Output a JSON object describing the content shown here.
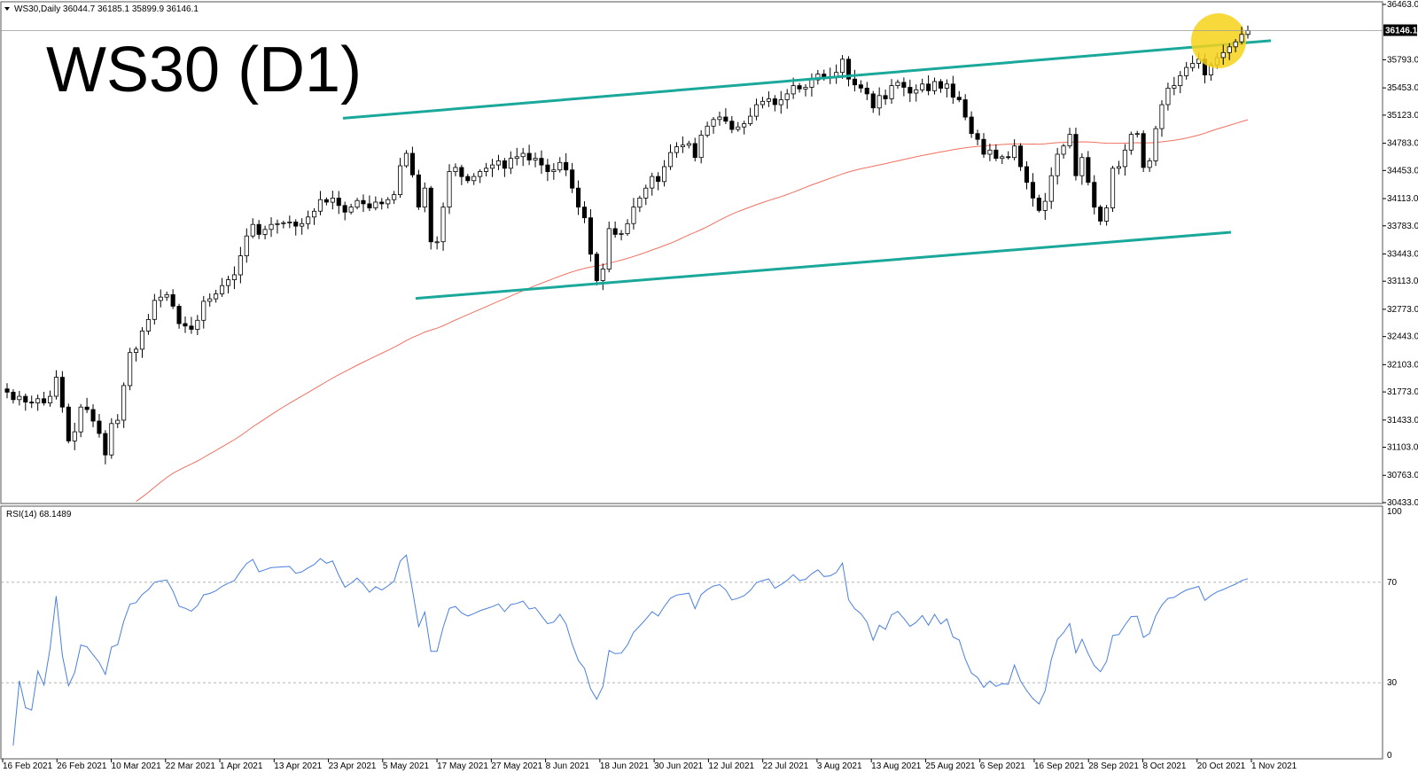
{
  "header": {
    "symbol_line": "WS30,Daily  36044.7 36185.1 35899.9 36146.1",
    "big_title": "WS30 (D1)"
  },
  "price_panel": {
    "current_price_label": "36146.1",
    "y_ticks": [
      "36463.0",
      "36146.1",
      "35793.0",
      "35453.0",
      "35123.0",
      "34783.0",
      "34453.0",
      "34113.0",
      "33783.0",
      "33443.0",
      "33113.0",
      "32773.0",
      "32443.0",
      "32103.0",
      "31773.0",
      "31433.0",
      "31103.0",
      "30763.0",
      "30433.0"
    ]
  },
  "rsi_panel": {
    "label": "RSI(14) 68.1489",
    "y_ticks": [
      "100",
      "70",
      "30",
      "0"
    ],
    "levels": [
      70,
      30
    ],
    "line_color": "#4a7fe0"
  },
  "x_labels": [
    "16 Feb 2021",
    "26 Feb 2021",
    "10 Mar 2021",
    "22 Mar 2021",
    "1 Apr 2021",
    "13 Apr 2021",
    "23 Apr 2021",
    "5 May 2021",
    "17 May 2021",
    "27 May 2021",
    "8 Jun 2021",
    "18 Jun 2021",
    "30 Jun 2021",
    "12 Jul 2021",
    "22 Jul 2021",
    "3 Aug 2021",
    "13 Aug 2021",
    "25 Aug 2021",
    "6 Sep 2021",
    "16 Sep 2021",
    "28 Sep 2021",
    "8 Oct 2021",
    "20 Oct 2021",
    "1 Nov 2021"
  ],
  "colors": {
    "channel": "#1aa89a",
    "ma": "#f07060",
    "highlight": "#f7d21a",
    "up_candle": "#ffffff",
    "down_candle": "#000000"
  },
  "chart_data": {
    "type": "candlestick",
    "timeframe": "Daily",
    "ylim": [
      30433.0,
      36463.0
    ],
    "rsi_ylim": [
      0,
      100
    ],
    "close": [
      31770,
      31680,
      31720,
      31650,
      31640,
      31690,
      31640,
      31720,
      31950,
      31590,
      31180,
      31290,
      31590,
      31560,
      31420,
      31270,
      31010,
      31390,
      31430,
      31850,
      32250,
      32290,
      32510,
      32650,
      32880,
      32920,
      32950,
      32810,
      32600,
      32570,
      32530,
      32640,
      32870,
      32900,
      32960,
      33060,
      33130,
      33190,
      33420,
      33660,
      33800,
      33680,
      33740,
      33800,
      33810,
      33820,
      33830,
      33780,
      33810,
      33890,
      33960,
      34100,
      34070,
      34120,
      34030,
      33950,
      34010,
      34090,
      34050,
      34000,
      34070,
      34050,
      34100,
      34160,
      34510,
      34660,
      34400,
      34010,
      34240,
      33590,
      33590,
      34010,
      34440,
      34490,
      34380,
      34330,
      34380,
      34440,
      34480,
      34520,
      34570,
      34480,
      34600,
      34620,
      34660,
      34580,
      34600,
      34520,
      34440,
      34460,
      34550,
      34460,
      34240,
      34010,
      33880,
      33440,
      33120,
      33260,
      33750,
      33680,
      33690,
      33810,
      34010,
      34120,
      34240,
      34380,
      34320,
      34500,
      34670,
      34740,
      34760,
      34780,
      34610,
      34880,
      34990,
      35070,
      35100,
      35050,
      34950,
      34980,
      35020,
      35110,
      35250,
      35290,
      35320,
      35250,
      35310,
      35380,
      35480,
      35440,
      35460,
      35550,
      35620,
      35580,
      35590,
      35640,
      35800,
      35560,
      35490,
      35450,
      35380,
      35210,
      35360,
      35320,
      35480,
      35520,
      35460,
      35390,
      35430,
      35500,
      35420,
      35530,
      35450,
      35500,
      35340,
      35310,
      35100,
      34900,
      34830,
      34650,
      34700,
      34600,
      34620,
      34610,
      34750,
      34500,
      34310,
      34120,
      33970,
      34080,
      34390,
      34650,
      34750,
      34890,
      34390,
      34610,
      34310,
      34010,
      33840,
      34000,
      34480,
      34500,
      34700,
      34890,
      34900,
      34490,
      34570,
      34960,
      35250,
      35450,
      35480,
      35600,
      35700,
      35750,
      35800,
      35610,
      35730,
      35820,
      35880,
      35950,
      36010,
      36100,
      36146
    ]
  }
}
